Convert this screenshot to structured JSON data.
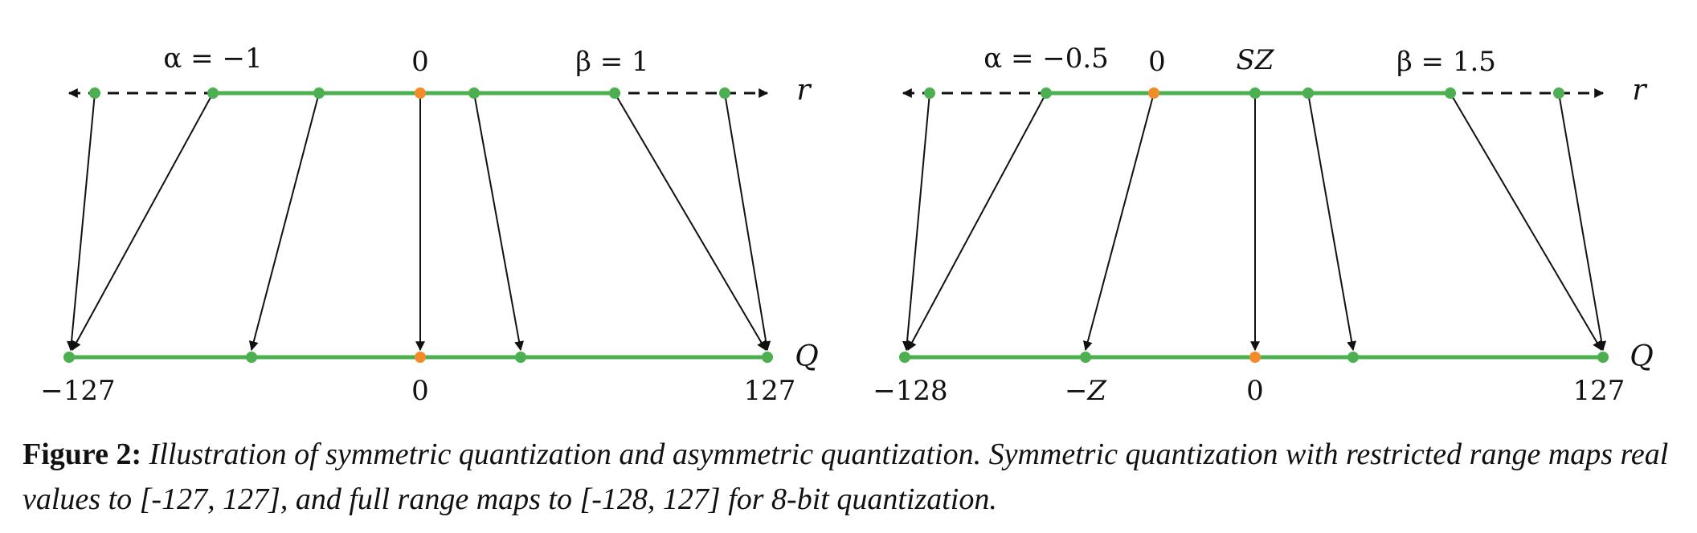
{
  "colors": {
    "green": "#4caf50",
    "orange": "#f28c28",
    "black": "#111111"
  },
  "panels": [
    {
      "name": "symmetric",
      "top_labels": [
        "α = −1",
        "0",
        "β = 1"
      ],
      "axis_top": "r",
      "axis_bottom": "Q",
      "bottom_labels": [
        "−127",
        "0",
        "127"
      ]
    },
    {
      "name": "asymmetric",
      "top_labels": [
        "α = −0.5",
        "0",
        "SZ",
        "β = 1.5"
      ],
      "axis_top": "r",
      "axis_bottom": "Q",
      "bottom_labels": [
        "−128",
        "−Z",
        "0",
        "127"
      ]
    }
  ],
  "caption": {
    "head": "Figure 2:",
    "body": "Illustration of symmetric quantization and asymmetric quantization. Symmetric quantization with restricted range maps real values to [-127, 127], and full range maps to [-128, 127] for 8-bit quantization."
  }
}
